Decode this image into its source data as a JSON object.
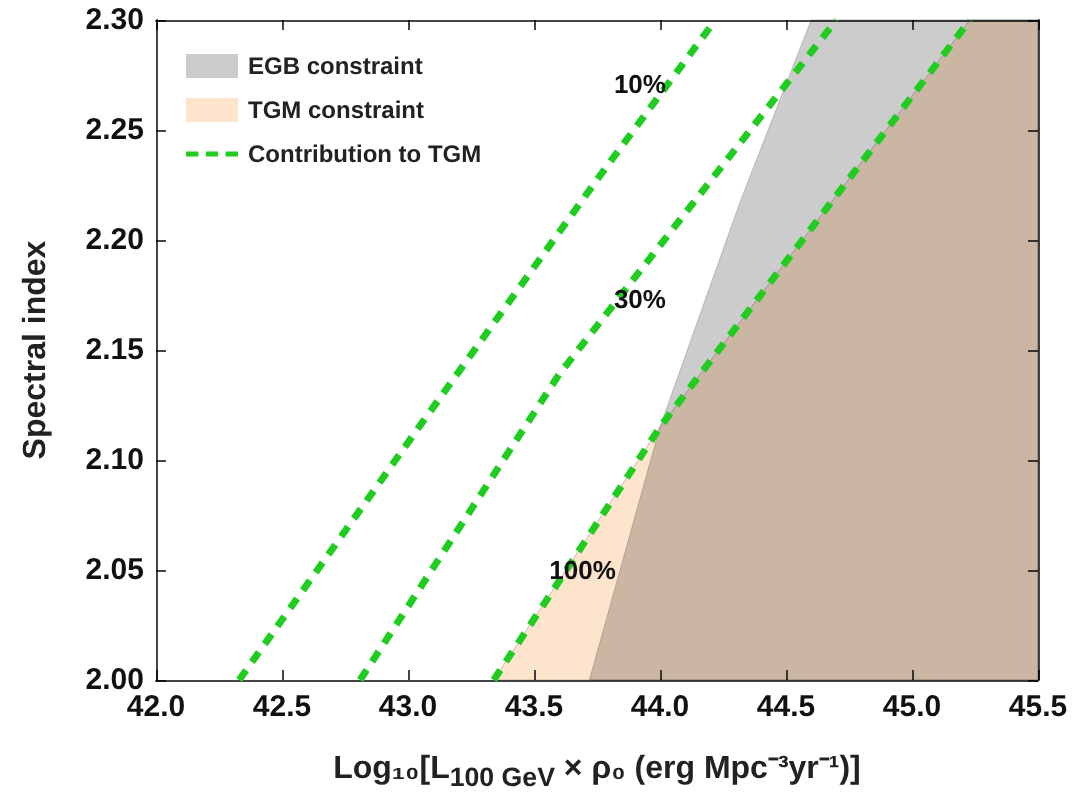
{
  "chart_data": {
    "type": "line",
    "xlabel": "Log₁₀[L$_{100 GeV}$ × ρ₀ (erg Mpc⁻³yr⁻¹)]",
    "ylabel": "Spectral index",
    "xlim": [
      42,
      45.5
    ],
    "xticks": [
      {
        "value": 42,
        "label": "42.0"
      },
      {
        "value": 42.5,
        "label": "42.5"
      },
      {
        "value": 43,
        "label": "43.0"
      },
      {
        "value": 43.5,
        "label": "43.5"
      },
      {
        "value": 44,
        "label": "44.0"
      },
      {
        "value": 44.5,
        "label": "44.5"
      },
      {
        "value": 45,
        "label": "45.0"
      },
      {
        "value": 45.5,
        "label": "45.5"
      }
    ],
    "ylim": [
      2,
      2.3
    ],
    "yticks": [
      {
        "value": 2,
        "label": "2.00"
      },
      {
        "value": 2.05,
        "label": "2.05"
      },
      {
        "value": 2.1,
        "label": "2.10"
      },
      {
        "value": 2.15,
        "label": "2.15"
      },
      {
        "value": 2.2,
        "label": "2.20"
      },
      {
        "value": 2.25,
        "label": "2.25"
      },
      {
        "value": 2.3,
        "label": "2.30"
      }
    ],
    "grid": false,
    "legend": "top left",
    "marker": "none",
    "line_style": "dashed",
    "series": [
      {
        "name": "TGM constraint",
        "type": "area",
        "color": "#fde4cc",
        "x": [
          43.34,
          44.0,
          45.23,
          45.5,
          45.5
        ],
        "values": [
          2.0,
          2.115,
          2.3,
          2.3,
          2.0
        ]
      },
      {
        "name": "EGB constraint",
        "type": "area",
        "color": "#cccccc",
        "x": [
          43.72,
          44.0,
          44.32,
          44.6,
          45.5,
          45.5
        ],
        "values": [
          2.0,
          2.115,
          2.218,
          2.3,
          2.3,
          2.0
        ]
      },
      {
        "name": "Contribution to TGM",
        "color": "#1fcc1f",
        "x": [
          42.33,
          43.05,
          43.76,
          44.22
        ],
        "values": [
          2.0,
          2.116,
          2.229,
          2.3
        ]
      },
      {
        "color": "#1fcc1f",
        "x": [
          42.81,
          43.6,
          44.7
        ],
        "values": [
          2.0,
          2.139,
          2.3
        ]
      },
      {
        "color": "#1fcc1f",
        "x": [
          43.34,
          43.6,
          44.0,
          45.23
        ],
        "values": [
          2.0,
          2.045,
          2.115,
          2.3
        ]
      }
    ],
    "annotations": [
      "10%",
      "30%",
      "100%"
    ]
  }
}
